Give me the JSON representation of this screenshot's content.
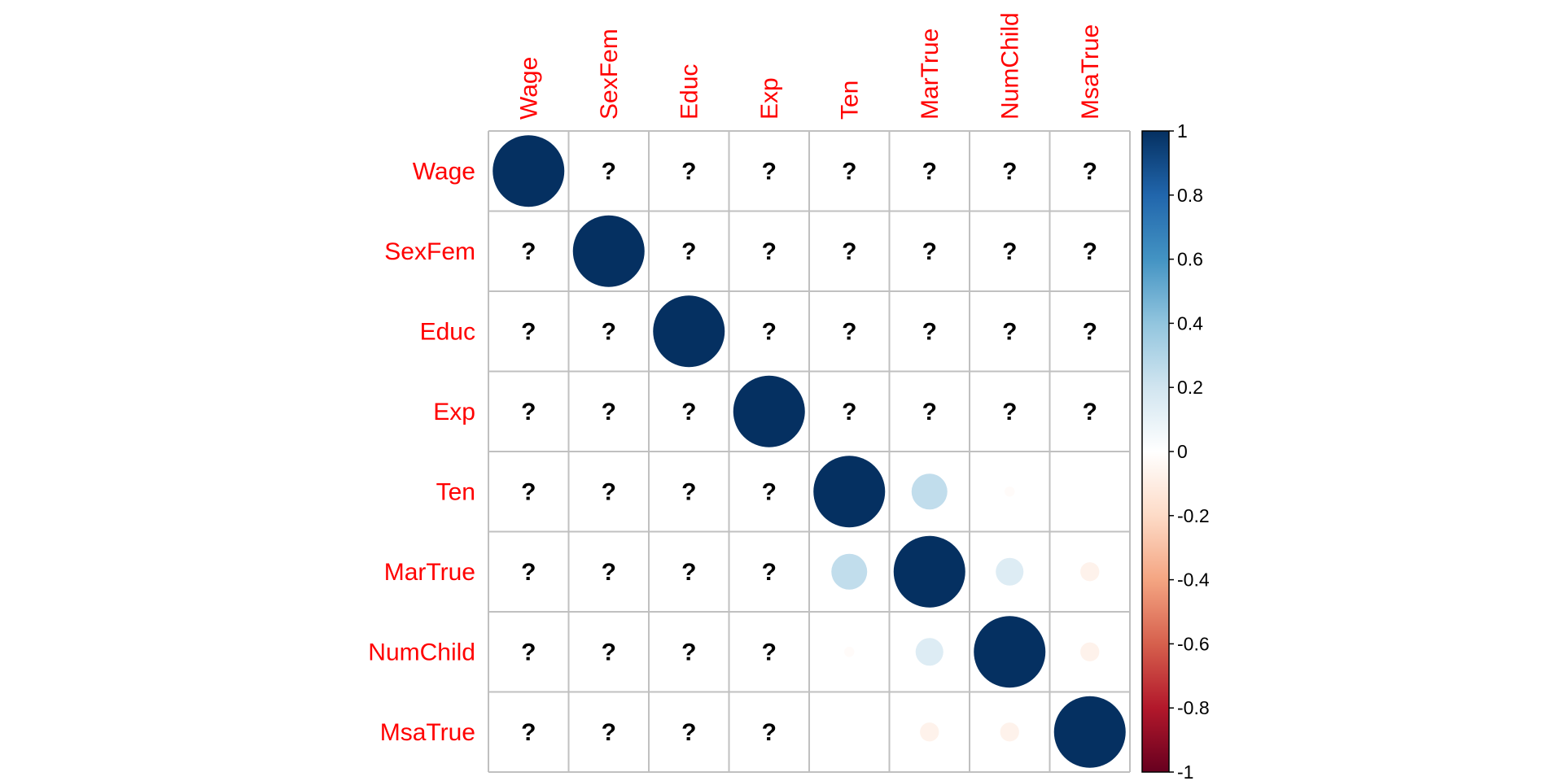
{
  "chart_data": {
    "type": "heatmap",
    "variables": [
      "Wage",
      "SexFem",
      "Educ",
      "Exp",
      "Ten",
      "MarTrue",
      "NumChild",
      "MsaTrue"
    ],
    "matrix": [
      [
        1,
        null,
        null,
        null,
        null,
        null,
        null,
        null
      ],
      [
        null,
        1,
        null,
        null,
        null,
        null,
        null,
        null
      ],
      [
        null,
        null,
        1,
        null,
        null,
        null,
        null,
        null
      ],
      [
        null,
        null,
        null,
        1,
        null,
        null,
        null,
        null
      ],
      [
        null,
        null,
        null,
        null,
        1,
        0.25,
        -0.02,
        0.0
      ],
      [
        null,
        null,
        null,
        null,
        0.25,
        1,
        0.15,
        -0.07
      ],
      [
        null,
        null,
        null,
        null,
        -0.02,
        0.15,
        1,
        -0.07
      ],
      [
        null,
        null,
        null,
        null,
        0.0,
        -0.07,
        -0.07,
        1
      ]
    ],
    "missing_symbol": "?",
    "colorbar": {
      "ticks": [
        "1",
        "0.8",
        "0.6",
        "0.4",
        "0.2",
        "0",
        "-0.2",
        "-0.4",
        "-0.6",
        "-0.8",
        "-1"
      ],
      "range": [
        -1,
        1
      ]
    },
    "colors": {
      "label": "#ff0000",
      "grid": "#c0c0c0",
      "scale": [
        "#67001F",
        "#B2182B",
        "#D6604D",
        "#F4A582",
        "#FDDBC7",
        "#FFFFFF",
        "#D1E5F0",
        "#92C5DE",
        "#4393C3",
        "#2166AC",
        "#053061"
      ]
    }
  }
}
